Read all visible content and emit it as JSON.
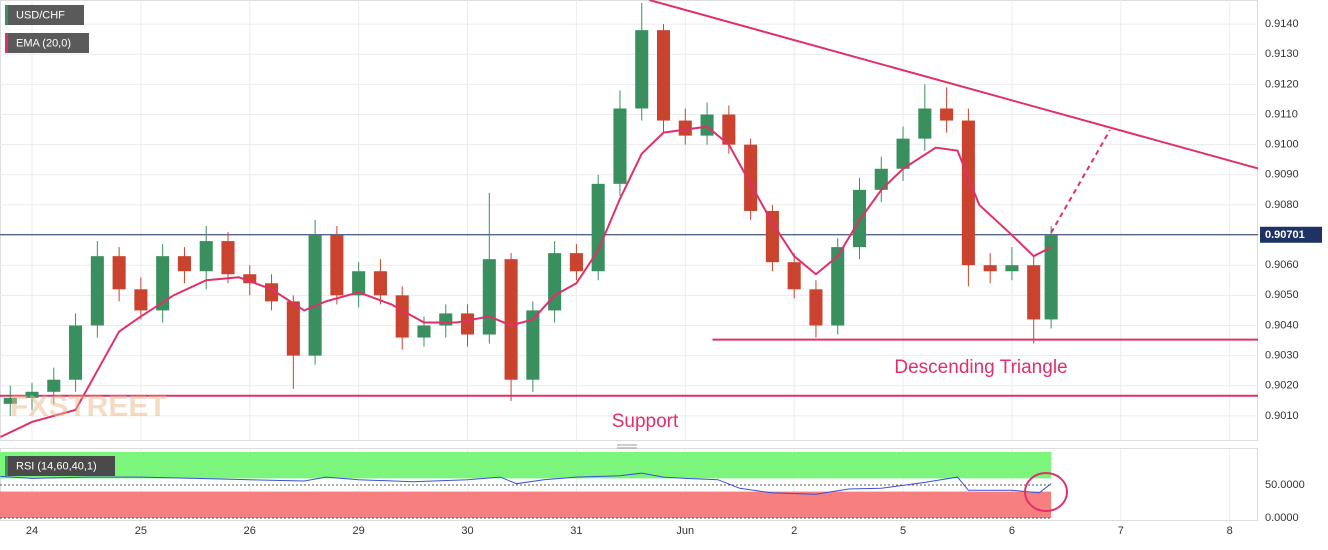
{
  "chart_data": [
    {
      "type": "candlestick",
      "title": "USD/CHF",
      "x": [
        -0.2,
        0.0,
        0.2,
        0.4,
        0.6,
        0.8,
        1.0,
        1.2,
        1.4,
        1.6,
        1.8,
        2.0,
        2.2,
        2.4,
        2.6,
        2.8,
        3.0,
        3.2,
        3.4,
        3.6,
        3.8,
        4.0,
        4.2,
        4.4,
        4.6,
        4.8,
        5.0,
        5.2,
        5.4,
        5.6,
        5.8,
        6.0,
        6.2,
        6.4,
        6.6,
        6.8,
        7.0,
        7.2,
        7.4,
        7.6,
        7.8,
        8.0,
        8.2,
        8.4,
        8.6,
        8.8,
        9.0,
        9.2,
        9.36
      ],
      "open": [
        0.9014,
        0.9016,
        0.9018,
        0.9022,
        0.904,
        0.9063,
        0.9052,
        0.9045,
        0.9063,
        0.9058,
        0.9068,
        0.9057,
        0.9054,
        0.9048,
        0.903,
        0.907,
        0.905,
        0.9058,
        0.905,
        0.9036,
        0.904,
        0.9044,
        0.9037,
        0.9062,
        0.9022,
        0.9045,
        0.9064,
        0.9058,
        0.9087,
        0.9112,
        0.9138,
        0.9108,
        0.9103,
        0.911,
        0.91,
        0.9078,
        0.9061,
        0.9052,
        0.904,
        0.9066,
        0.9085,
        0.9092,
        0.9102,
        0.9112,
        0.9108,
        0.906,
        0.9058,
        0.906,
        0.9042
      ],
      "high": [
        0.902,
        0.9021,
        0.9026,
        0.9044,
        0.9068,
        0.9066,
        0.9056,
        0.9067,
        0.9066,
        0.9073,
        0.9071,
        0.906,
        0.9057,
        0.905,
        0.9075,
        0.9073,
        0.9061,
        0.9062,
        0.9053,
        0.9043,
        0.9047,
        0.9047,
        0.9084,
        0.9064,
        0.9048,
        0.9068,
        0.9067,
        0.909,
        0.9118,
        0.9147,
        0.914,
        0.9112,
        0.9114,
        0.9113,
        0.9102,
        0.908,
        0.9064,
        0.9055,
        0.9069,
        0.9089,
        0.9096,
        0.9106,
        0.912,
        0.9119,
        0.9112,
        0.9064,
        0.9066,
        0.9063,
        0.9073
      ],
      "low": [
        0.901,
        0.9012,
        0.9014,
        0.9018,
        0.9036,
        0.9048,
        0.9042,
        0.9041,
        0.9054,
        0.9052,
        0.9054,
        0.905,
        0.9045,
        0.9019,
        0.9027,
        0.9047,
        0.9046,
        0.9047,
        0.9032,
        0.9033,
        0.9036,
        0.9033,
        0.9034,
        0.9015,
        0.9018,
        0.9041,
        0.9055,
        0.9055,
        0.9083,
        0.9108,
        0.9104,
        0.91,
        0.91,
        0.9097,
        0.9075,
        0.9058,
        0.9049,
        0.9036,
        0.9037,
        0.9062,
        0.9081,
        0.9088,
        0.9098,
        0.9104,
        0.9053,
        0.9054,
        0.9055,
        0.9034,
        0.9039
      ],
      "close": [
        0.9016,
        0.9018,
        0.9022,
        0.904,
        0.9063,
        0.9052,
        0.9045,
        0.9063,
        0.9058,
        0.9068,
        0.9057,
        0.9054,
        0.9048,
        0.903,
        0.907,
        0.905,
        0.9058,
        0.905,
        0.9036,
        0.904,
        0.9044,
        0.9037,
        0.9062,
        0.9022,
        0.9045,
        0.9064,
        0.9058,
        0.9087,
        0.9112,
        0.9138,
        0.9108,
        0.9103,
        0.911,
        0.91,
        0.9078,
        0.9061,
        0.9052,
        0.904,
        0.9066,
        0.9085,
        0.9092,
        0.9102,
        0.9112,
        0.9108,
        0.906,
        0.9058,
        0.906,
        0.9042,
        0.907
      ],
      "up_color": "#3a8f5e",
      "down_color": "#c9432f",
      "series": [
        {
          "name": "EMA (20,0)",
          "color": "#e0306a",
          "x": [
            -0.29,
            0.0,
            0.4,
            0.6,
            0.8,
            1.0,
            1.3,
            1.6,
            1.9,
            2.2,
            2.5,
            2.7,
            3.0,
            3.3,
            3.6,
            3.9,
            4.2,
            4.4,
            4.6,
            4.8,
            5.0,
            5.2,
            5.4,
            5.6,
            5.8,
            6.2,
            6.4,
            6.6,
            6.8,
            7.0,
            7.2,
            7.4,
            7.6,
            7.8,
            8.0,
            8.3,
            8.5,
            8.7,
            9.0,
            9.2,
            9.36
          ],
          "values": [
            0.9003,
            0.9008,
            0.9012,
            0.9025,
            0.9038,
            0.9043,
            0.905,
            0.9055,
            0.9056,
            0.9052,
            0.9045,
            0.9048,
            0.9051,
            0.9047,
            0.9041,
            0.9041,
            0.9043,
            0.904,
            0.9042,
            0.905,
            0.9054,
            0.9065,
            0.9082,
            0.9097,
            0.9104,
            0.9106,
            0.91,
            0.9087,
            0.9074,
            0.9063,
            0.9057,
            0.9063,
            0.9075,
            0.9085,
            0.9092,
            0.9099,
            0.9098,
            0.908,
            0.907,
            0.9063,
            0.9066
          ]
        }
      ],
      "current_price": {
        "value": 0.90701,
        "label": "0.90701",
        "color": "#1f3264"
      },
      "trend_line": {
        "x": [
          5.67,
          11.26
        ],
        "y": [
          0.9148,
          0.90921
        ],
        "color": "#e0306a"
      },
      "projection": {
        "x": [
          9.36,
          9.9
        ],
        "y": [
          0.90708,
          0.91048
        ],
        "color": "#e0306a"
      },
      "support": {
        "value": 0.90167,
        "label": "Support",
        "color": "#e0306a"
      },
      "triangle_base": {
        "value": 0.90353,
        "x": [
          6.25,
          11.26
        ],
        "label": "Descending Triangle",
        "color": "#e0306a"
      },
      "watermark": "FXSTREET",
      "xlim": [
        -0.294,
        11.26
      ],
      "xticks": [
        {
          "value": 0,
          "label": "24"
        },
        {
          "value": 1,
          "label": "25"
        },
        {
          "value": 2,
          "label": "26"
        },
        {
          "value": 3,
          "label": "29"
        },
        {
          "value": 4,
          "label": "30"
        },
        {
          "value": 5,
          "label": "31"
        },
        {
          "value": 6,
          "label": "Jun"
        },
        {
          "value": 7,
          "label": "2"
        },
        {
          "value": 8,
          "label": "5"
        },
        {
          "value": 9,
          "label": "6"
        },
        {
          "value": 10,
          "label": "7"
        },
        {
          "value": 11,
          "label": "8"
        }
      ],
      "ylim": [
        0.9002,
        0.9148
      ],
      "yticks": [
        {
          "value": 0.901,
          "label": "0.9010"
        },
        {
          "value": 0.902,
          "label": "0.9020"
        },
        {
          "value": 0.903,
          "label": "0.9030"
        },
        {
          "value": 0.904,
          "label": "0.9040"
        },
        {
          "value": 0.905,
          "label": "0.9050"
        },
        {
          "value": 0.906,
          "label": "0.9060"
        },
        {
          "value": 0.907,
          "label": "0.9070"
        },
        {
          "value": 0.908,
          "label": "0.9080"
        },
        {
          "value": 0.909,
          "label": "0.9090"
        },
        {
          "value": 0.91,
          "label": "0.9100"
        },
        {
          "value": 0.911,
          "label": "0.9110"
        },
        {
          "value": 0.912,
          "label": "0.9120"
        },
        {
          "value": 0.913,
          "label": "0.9130"
        },
        {
          "value": 0.914,
          "label": "0.9140"
        }
      ],
      "grid": true
    },
    {
      "type": "line",
      "title": "RSI (14,60,40,1)",
      "series": [
        {
          "name": "RSI (14,60,40,1)",
          "color": "#3b4fd8",
          "x": [
            -0.29,
            0.0,
            0.5,
            1.0,
            1.5,
            2.0,
            2.5,
            2.7,
            3.0,
            3.5,
            4.0,
            4.3,
            4.45,
            4.7,
            5.0,
            5.4,
            5.6,
            5.8,
            6.0,
            6.3,
            6.5,
            6.8,
            7.2,
            7.5,
            7.8,
            8.2,
            8.5,
            8.6,
            9.0,
            9.25,
            9.36
          ],
          "values": [
            63,
            60,
            62,
            62,
            60,
            58,
            56,
            62,
            58,
            55,
            58,
            62,
            52,
            58,
            62,
            64,
            68,
            62,
            60,
            58,
            45,
            38,
            36,
            44,
            45,
            54,
            62,
            42,
            42,
            38,
            52
          ]
        }
      ],
      "bands": [
        {
          "from": 60,
          "to": 100,
          "color": "#7cf57c"
        },
        {
          "from": 0,
          "to": 40,
          "color": "#f77f7f"
        }
      ],
      "ylim": [
        0,
        100
      ],
      "yticks": [
        {
          "value": 50,
          "label": "50.0000"
        },
        {
          "value": 0,
          "label": "0.0000"
        }
      ]
    }
  ]
}
